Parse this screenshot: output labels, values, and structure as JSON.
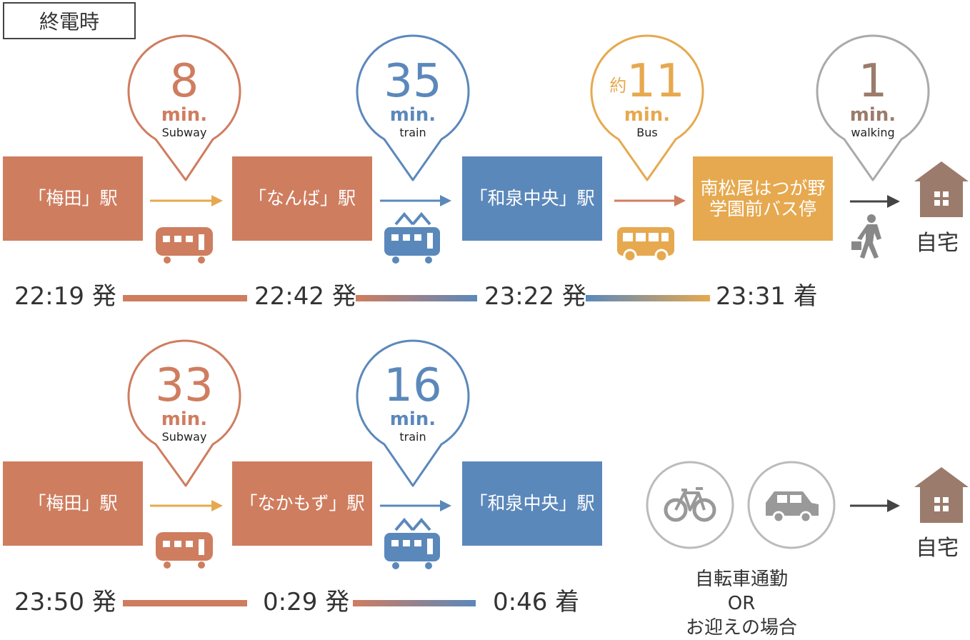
{
  "title": "終電時",
  "colors": {
    "orange": "#cf7d5f",
    "blue": "#5b88bb",
    "yellow": "#e6a94f",
    "gray": "#aaaaaa",
    "brown": "#9b7b6b",
    "arrow_dark": "#444444"
  },
  "route1": {
    "stations": [
      "「梅田」駅",
      "「なんば」駅",
      "「和泉中央」駅",
      "南松尾はつが野\n学園前バス停"
    ],
    "bubbles": [
      {
        "prefix": "",
        "number": "8",
        "unit": "min.",
        "mode": "Subway"
      },
      {
        "prefix": "",
        "number": "35",
        "unit": "min.",
        "mode": "train"
      },
      {
        "prefix": "約",
        "number": "11",
        "unit": "min.",
        "mode": "Bus"
      },
      {
        "prefix": "",
        "number": "1",
        "unit": "min.",
        "mode": "walking"
      }
    ],
    "times": [
      "22:19 発",
      "22:42 発",
      "23:22 発",
      "23:31 着"
    ],
    "home": "自宅",
    "icons": [
      "subway-icon",
      "train-icon",
      "bus-icon",
      "walking-person-icon",
      "house-icon"
    ]
  },
  "route2": {
    "stations": [
      "「梅田」駅",
      "「なかもず」駅",
      "「和泉中央」駅"
    ],
    "bubbles": [
      {
        "number": "33",
        "unit": "min.",
        "mode": "Subway"
      },
      {
        "number": "16",
        "unit": "min.",
        "mode": "train"
      }
    ],
    "times": [
      "23:50 発",
      "0:29 発",
      "0:46 着"
    ],
    "home": "自宅",
    "note": [
      "自転車通勤",
      "OR",
      "お迎えの場合"
    ],
    "icons": [
      "subway-icon",
      "train-icon",
      "bicycle-icon",
      "car-icon",
      "house-icon"
    ]
  }
}
